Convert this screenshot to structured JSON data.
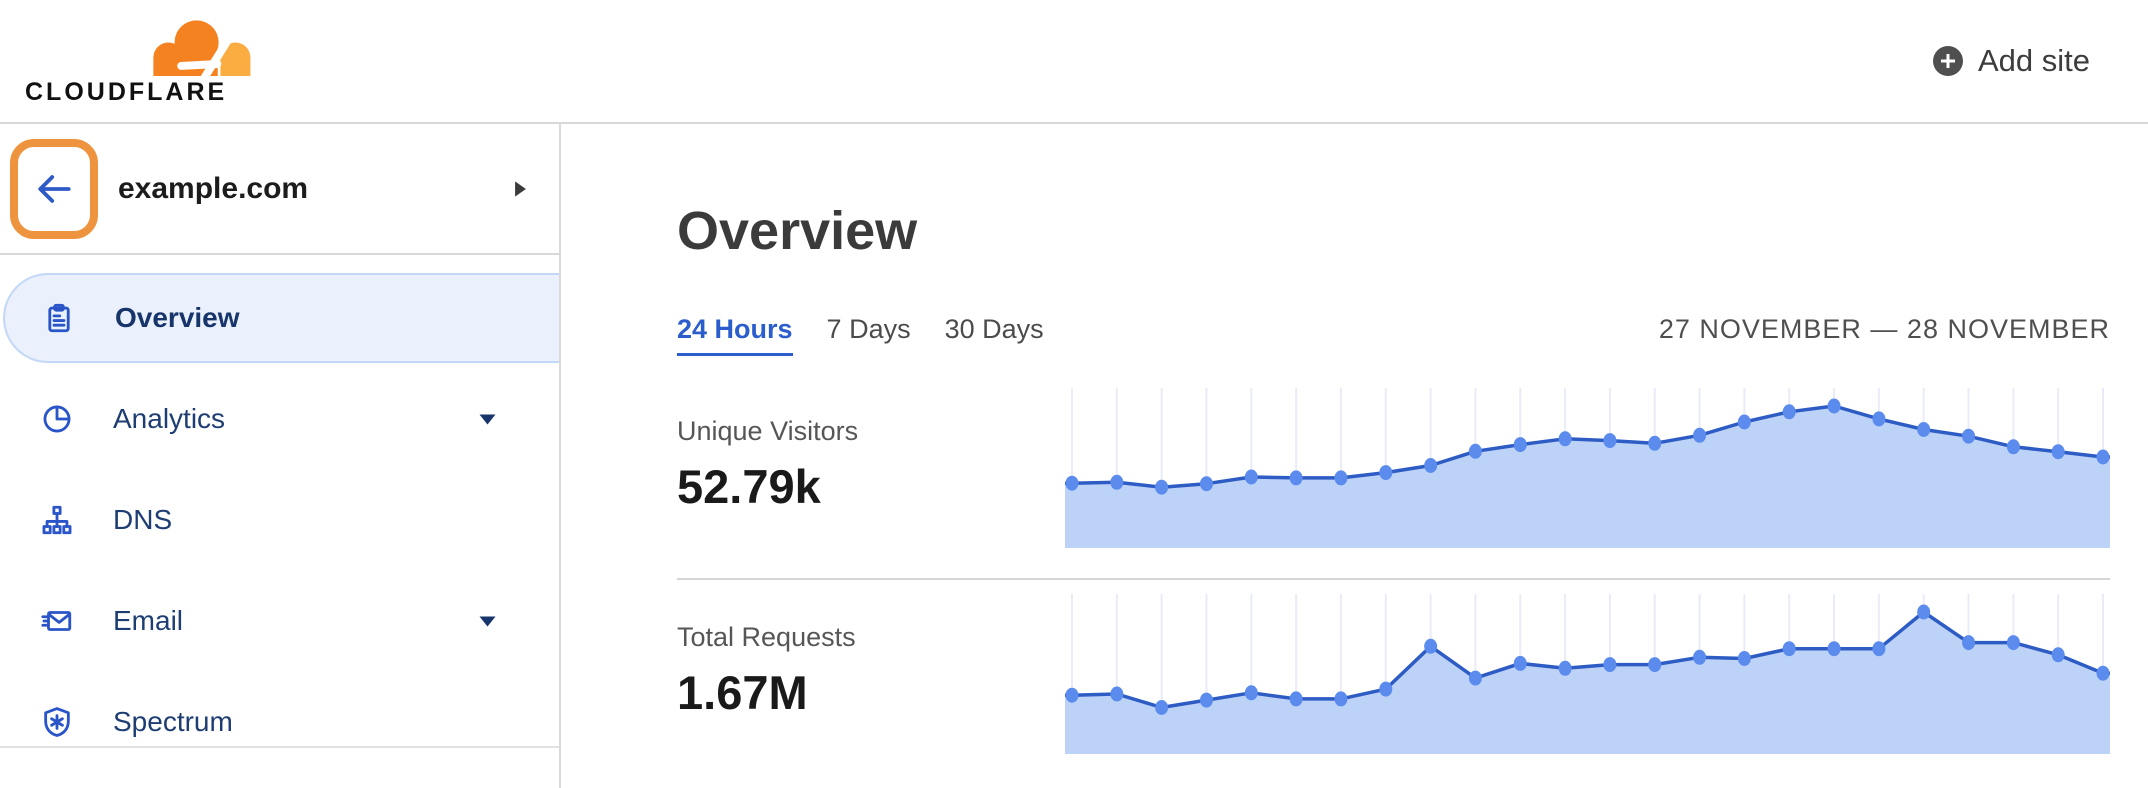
{
  "header": {
    "logo_text": "CLOUDFLARE",
    "add_site_label": "Add site"
  },
  "sidebar": {
    "site_name": "example.com",
    "items": [
      {
        "label": "Overview",
        "icon": "clipboard-icon",
        "active": true,
        "caret": false
      },
      {
        "label": "Analytics",
        "icon": "pie-chart-icon",
        "active": false,
        "caret": true
      },
      {
        "label": "DNS",
        "icon": "dns-tree-icon",
        "active": false,
        "caret": false
      },
      {
        "label": "Email",
        "icon": "email-icon",
        "active": false,
        "caret": true
      },
      {
        "label": "Spectrum",
        "icon": "shield-icon",
        "active": false,
        "caret": false
      }
    ]
  },
  "main": {
    "title": "Overview",
    "tabs": [
      {
        "label": "24 Hours",
        "active": true
      },
      {
        "label": "7 Days",
        "active": false
      },
      {
        "label": "30 Days",
        "active": false
      }
    ],
    "date_range": "27 NOVEMBER — 28 NOVEMBER",
    "metrics": [
      {
        "label": "Unique Visitors",
        "value": "52.79k"
      },
      {
        "label": "Total Requests",
        "value": "1.67M"
      }
    ]
  },
  "colors": {
    "accent_blue": "#2b5ecc",
    "chart_line": "#2e5cc5",
    "chart_fill": "#bdd2f7",
    "chart_dot": "#5c8bee",
    "chart_gridline": "#e9ecf7",
    "sidebar_active_bg": "#eaf1fc",
    "sidebar_active_border": "#c3d7f6",
    "nav_icon_blue": "#2a55c8",
    "brand_orange": "#f58220",
    "brand_orange_light": "#fbad41",
    "highlight_orange": "#ef943e",
    "divider_gray": "#d8d8d8"
  },
  "chart_data": [
    {
      "id": "unique-visitors",
      "type": "area",
      "title": "Unique Visitors",
      "total_label": "52.79k",
      "points": 24,
      "x_axis": "24-hour window, hourly, tick labels not shown",
      "values": [
        1460,
        1480,
        1370,
        1450,
        1600,
        1580,
        1580,
        1700,
        1860,
        2180,
        2330,
        2460,
        2420,
        2360,
        2540,
        2840,
        3070,
        3200,
        2910,
        2670,
        2520,
        2280,
        2170,
        2050
      ],
      "values_estimated": true,
      "ylim": [
        0,
        3400
      ],
      "grid": "vertical",
      "legend": false
    },
    {
      "id": "total-requests",
      "type": "area",
      "title": "Total Requests",
      "total_label": "1.67M",
      "points": 24,
      "x_axis": "24-hour window, hourly, tick labels not shown",
      "values": [
        48000,
        49000,
        38000,
        44000,
        50000,
        45000,
        45000,
        53000,
        88000,
        62000,
        74000,
        70000,
        73000,
        73000,
        79000,
        78000,
        86000,
        86000,
        86000,
        116000,
        91000,
        91000,
        81000,
        66000
      ],
      "values_estimated": true,
      "ylim": [
        0,
        125000
      ],
      "grid": "vertical",
      "legend": false
    }
  ]
}
